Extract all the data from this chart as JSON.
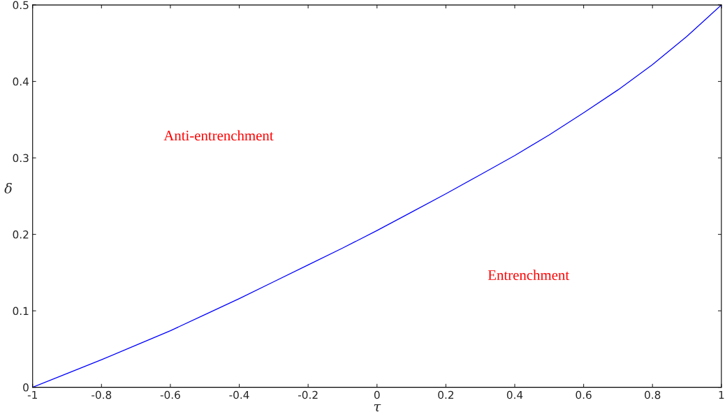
{
  "chart_data": {
    "type": "line",
    "xlabel": "τ",
    "ylabel": "δ",
    "x": [
      -1,
      -0.9,
      -0.8,
      -0.7,
      -0.6,
      -0.5,
      -0.4,
      -0.3,
      -0.2,
      -0.1,
      0,
      0.1,
      0.2,
      0.3,
      0.4,
      0.5,
      0.6,
      0.7,
      0.8,
      0.9,
      1
    ],
    "series": [
      {
        "color": "#0000ff",
        "values": [
          0,
          0.018,
          0.036,
          0.055,
          0.074,
          0.095,
          0.116,
          0.138,
          0.16,
          0.182,
          0.205,
          0.229,
          0.253,
          0.278,
          0.303,
          0.33,
          0.359,
          0.389,
          0.422,
          0.459,
          0.5
        ]
      }
    ],
    "xlim": [
      -1,
      1
    ],
    "ylim": [
      0,
      0.5
    ],
    "xticks": [
      -1,
      -0.8,
      -0.6,
      -0.4,
      -0.2,
      0,
      0.2,
      0.4,
      0.6,
      0.8,
      1
    ],
    "yticks": [
      0,
      0.1,
      0.2,
      0.3,
      0.4,
      0.5
    ],
    "annotations": [
      "Anti-entrenchment",
      "Entrenchment"
    ],
    "grid": false,
    "legend": false
  }
}
